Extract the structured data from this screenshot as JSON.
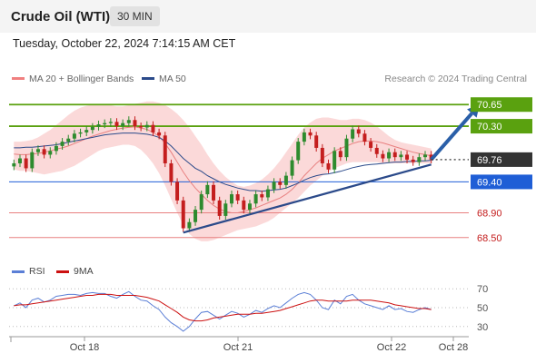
{
  "header": {
    "title": "Crude Oil (WTI)",
    "timeframe": "30 MIN"
  },
  "datetime": "Tuesday, October 22, 2024 7:14:15 AM CET",
  "legend": [
    {
      "label": "MA 20 + Bollinger Bands",
      "color": "#f08080"
    },
    {
      "label": "MA 50",
      "color": "#2b4a8a"
    }
  ],
  "watermark": "Research © 2024 Trading Central",
  "colors": {
    "up": "#2e8b2e",
    "down": "#c41e1e",
    "resistance": "#5aa10f",
    "support": "#1f5ed6",
    "target": "#e88080",
    "ma50": "#2b4a8a",
    "band": "#f9c9c9",
    "arrow": "#2a5fa8",
    "last": "#333333"
  },
  "chart_data": [
    {
      "type": "line",
      "subtype": "candlestick",
      "xlabel": "",
      "ylabel": "",
      "x_ticks": [
        "Oct 18",
        "Oct 21",
        "Oct 22",
        "Oct 28"
      ],
      "ylim": [
        68.35,
        70.8
      ],
      "last_price": 69.76,
      "levels": [
        {
          "value": 70.65,
          "label": "70.65",
          "kind": "resistance"
        },
        {
          "value": 70.3,
          "label": "70.30",
          "kind": "resistance"
        },
        {
          "value": 69.4,
          "label": "69.40",
          "kind": "support"
        },
        {
          "value": 68.9,
          "label": "68.90",
          "kind": "target"
        },
        {
          "value": 68.5,
          "label": "68.50",
          "kind": "target"
        }
      ],
      "close": [
        69.7,
        69.78,
        69.62,
        69.88,
        69.93,
        69.84,
        69.9,
        69.98,
        70.05,
        70.1,
        70.18,
        70.2,
        70.24,
        70.29,
        70.33,
        70.35,
        70.37,
        70.3,
        70.35,
        70.4,
        70.3,
        70.28,
        70.32,
        70.2,
        70.15,
        69.7,
        69.4,
        69.1,
        68.65,
        68.75,
        68.95,
        69.2,
        69.35,
        69.1,
        68.85,
        69.05,
        69.2,
        69.1,
        68.95,
        69.05,
        69.2,
        69.15,
        69.28,
        69.4,
        69.35,
        69.5,
        69.75,
        70.05,
        70.2,
        70.15,
        69.95,
        69.7,
        69.6,
        69.9,
        69.8,
        70.1,
        70.25,
        70.18,
        70.05,
        69.95,
        69.85,
        69.78,
        69.88,
        69.8,
        69.84,
        69.76,
        69.72,
        69.8,
        69.84,
        69.76
      ],
      "trendline": [
        [
          28,
          68.58
        ],
        [
          69,
          69.68
        ]
      ],
      "target_arrow": {
        "from": [
          69,
          69.76
        ],
        "to": [
          77,
          70.65
        ]
      },
      "ma50": [
        69.95,
        69.95,
        69.96,
        69.96,
        69.97,
        69.98,
        69.99,
        70.0,
        70.02,
        70.04,
        70.06,
        70.08,
        70.1,
        70.12,
        70.14,
        70.16,
        70.17,
        70.18,
        70.19,
        70.19,
        70.19,
        70.18,
        70.17,
        70.15,
        70.12,
        70.06,
        69.98,
        69.88,
        69.78,
        69.7,
        69.62,
        69.57,
        69.5,
        69.45,
        69.4,
        69.36,
        69.33,
        69.3,
        69.28,
        69.26,
        69.26,
        69.25,
        69.26,
        69.27,
        69.28,
        69.3,
        69.34,
        69.38,
        69.43,
        69.47,
        69.5,
        69.52,
        69.53,
        69.55,
        69.57,
        69.6,
        69.63,
        69.65,
        69.67,
        69.68,
        69.69,
        69.7,
        69.71,
        69.72,
        69.72,
        69.73,
        69.73,
        69.74,
        69.74,
        69.75
      ],
      "ma20": [
        69.85,
        69.84,
        69.84,
        69.85,
        69.86,
        69.88,
        69.9,
        69.93,
        69.95,
        69.98,
        70.02,
        70.06,
        70.1,
        70.14,
        70.17,
        70.2,
        70.23,
        70.25,
        70.27,
        70.28,
        70.29,
        70.27,
        70.25,
        70.2,
        70.14,
        70.02,
        69.88,
        69.72,
        69.56,
        69.42,
        69.3,
        69.2,
        69.1,
        69.02,
        68.96,
        68.92,
        68.9,
        68.9,
        68.92,
        68.95,
        68.98,
        69.02,
        69.06,
        69.1,
        69.14,
        69.2,
        69.28,
        69.38,
        69.5,
        69.6,
        69.7,
        69.78,
        69.84,
        69.9,
        69.94,
        69.98,
        70.02,
        70.05,
        70.06,
        70.06,
        70.05,
        70.03,
        70.0,
        69.97,
        69.94,
        69.91,
        69.88,
        69.86,
        69.84,
        69.82
      ],
      "bb_upper": [
        70.05,
        70.05,
        70.06,
        70.08,
        70.12,
        70.18,
        70.24,
        70.32,
        70.4,
        70.48,
        70.55,
        70.6,
        70.63,
        70.65,
        70.66,
        70.66,
        70.64,
        70.62,
        70.62,
        70.64,
        70.66,
        70.68,
        70.7,
        70.7,
        70.68,
        70.64,
        70.58,
        70.5,
        70.4,
        70.28,
        70.14,
        70.0,
        69.84,
        69.7,
        69.58,
        69.48,
        69.4,
        69.34,
        69.32,
        69.34,
        69.38,
        69.44,
        69.52,
        69.62,
        69.74,
        69.88,
        70.02,
        70.16,
        70.28,
        70.36,
        70.42,
        70.44,
        70.44,
        70.42,
        70.4,
        70.4,
        70.42,
        70.42,
        70.4,
        70.36,
        70.3,
        70.22,
        70.14,
        70.08,
        70.04,
        70.02,
        70.0,
        69.98,
        69.96,
        69.94
      ],
      "bb_lower": [
        69.6,
        69.58,
        69.58,
        69.56,
        69.54,
        69.52,
        69.54,
        69.56,
        69.58,
        69.62,
        69.66,
        69.72,
        69.78,
        69.84,
        69.9,
        69.94,
        69.96,
        69.98,
        70.0,
        70.0,
        69.98,
        69.92,
        69.82,
        69.7,
        69.54,
        69.34,
        69.12,
        68.9,
        68.7,
        68.56,
        68.48,
        68.44,
        68.44,
        68.46,
        68.5,
        68.54,
        68.58,
        68.62,
        68.64,
        68.66,
        68.68,
        68.72,
        68.76,
        68.82,
        68.9,
        68.98,
        69.06,
        69.14,
        69.24,
        69.34,
        69.42,
        69.5,
        69.56,
        69.62,
        69.66,
        69.7,
        69.72,
        69.72,
        69.72,
        69.72,
        69.72,
        69.7,
        69.7,
        69.7,
        69.7,
        69.7,
        69.7,
        69.7,
        69.7,
        69.7
      ]
    },
    {
      "type": "line",
      "indicator": "RSI",
      "ylim": [
        25,
        75
      ],
      "y_ticks": [
        70,
        50,
        30
      ],
      "series": [
        {
          "name": "RSI",
          "color": "#5b7fd6",
          "values": [
            52,
            55,
            50,
            58,
            60,
            56,
            58,
            62,
            63,
            64,
            64,
            63,
            65,
            66,
            65,
            65,
            62,
            60,
            64,
            67,
            62,
            58,
            57,
            52,
            48,
            40,
            34,
            30,
            25,
            30,
            38,
            45,
            46,
            42,
            38,
            42,
            46,
            44,
            40,
            43,
            47,
            45,
            49,
            52,
            50,
            55,
            60,
            64,
            66,
            64,
            58,
            50,
            48,
            58,
            54,
            62,
            64,
            58,
            54,
            52,
            50,
            48,
            52,
            48,
            49,
            46,
            45,
            48,
            50,
            48
          ]
        },
        {
          "name": "9MA",
          "color": "#cc1111",
          "values": [
            52,
            53,
            53,
            54,
            55,
            56,
            57,
            58,
            59,
            60,
            61,
            62,
            63,
            63,
            64,
            64,
            64,
            63,
            63,
            63,
            63,
            62,
            61,
            59,
            57,
            53,
            49,
            45,
            40,
            37,
            36,
            36,
            37,
            39,
            40,
            41,
            42,
            43,
            43,
            43,
            44,
            44,
            45,
            46,
            47,
            49,
            51,
            53,
            55,
            57,
            58,
            58,
            57,
            57,
            57,
            57,
            58,
            58,
            58,
            58,
            57,
            56,
            55,
            53,
            52,
            51,
            50,
            49,
            49,
            48
          ]
        }
      ]
    }
  ]
}
